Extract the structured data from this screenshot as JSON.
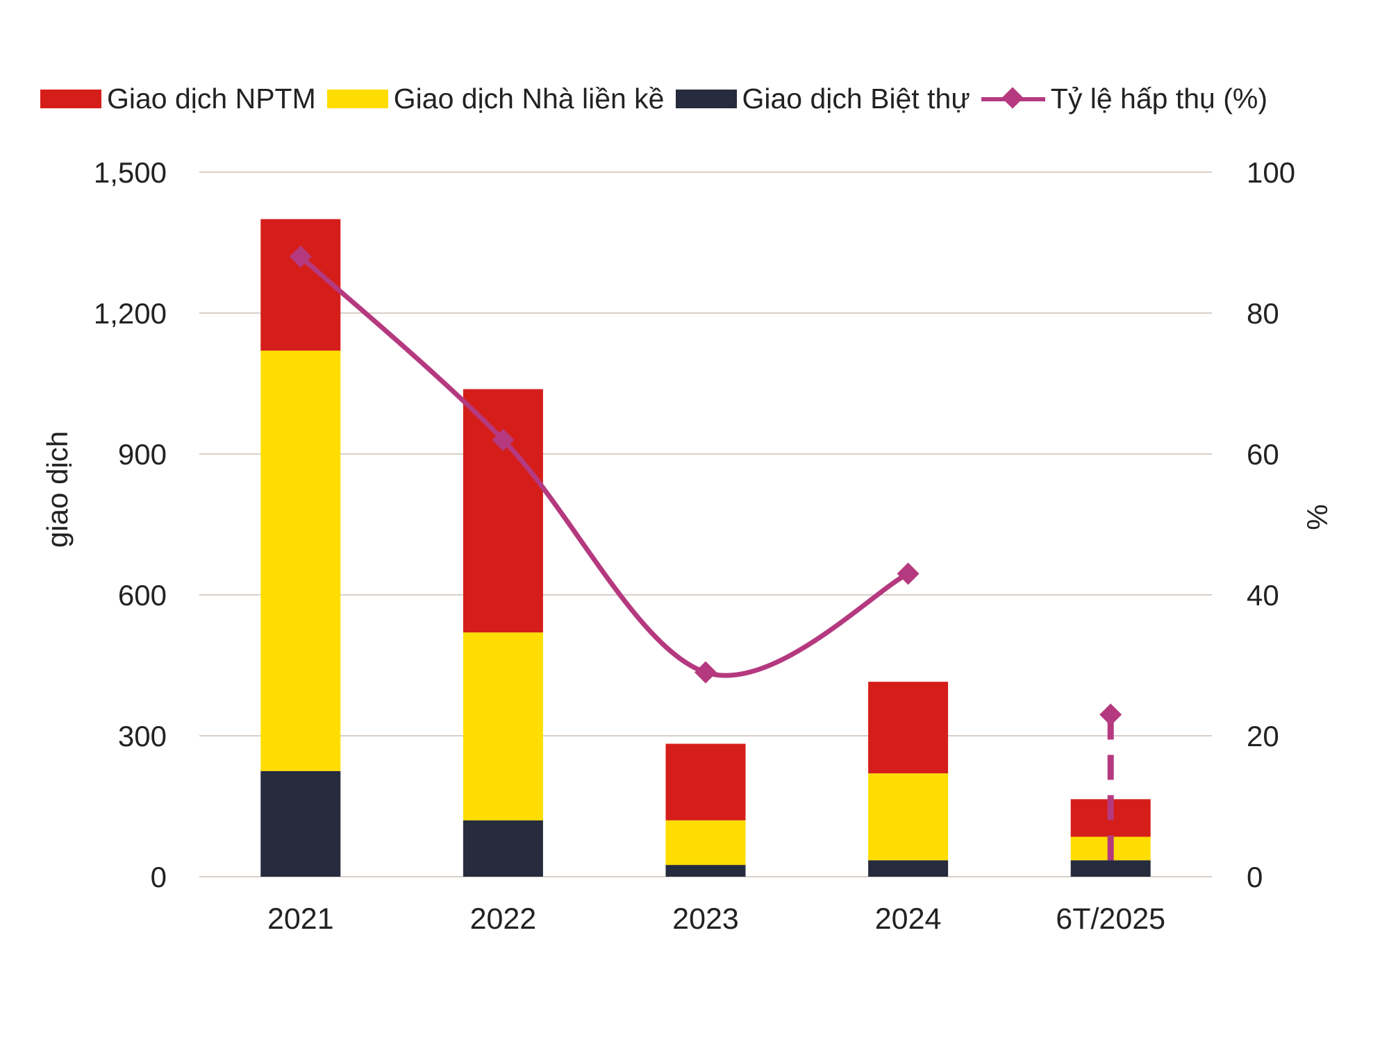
{
  "chart_data": {
    "type": "bar",
    "stacked": true,
    "categories": [
      "2021",
      "2022",
      "2023",
      "2024",
      "6T/2025"
    ],
    "series": [
      {
        "name": "Giao dịch Biệt thự",
        "type": "bar",
        "axis": "left",
        "color": "#262b3d",
        "values": [
          225,
          120,
          25,
          35,
          35
        ]
      },
      {
        "name": "Giao dịch Nhà liền kề",
        "type": "bar",
        "axis": "left",
        "color": "#ffdd00",
        "values": [
          895,
          400,
          95,
          185,
          50
        ]
      },
      {
        "name": "Giao dịch NPTM",
        "type": "bar",
        "axis": "left",
        "color": "#d51e1a",
        "values": [
          280,
          518,
          163,
          195,
          80
        ]
      },
      {
        "name": "Tỷ lệ hấp thụ (%)",
        "type": "line",
        "axis": "right",
        "color": "#b5397f",
        "values": [
          88,
          62,
          29,
          43,
          23
        ],
        "last_segment_style": "dashed-vertical"
      }
    ],
    "legend_order": [
      "Giao dịch NPTM",
      "Giao dịch Nhà liền kề",
      "Giao dịch Biệt thự",
      "Tỷ lệ hấp thụ (%)"
    ],
    "left_axis": {
      "label": "giao dịch",
      "min": 0,
      "max": 1500,
      "ticks": [
        "0",
        "300",
        "600",
        "900",
        "1,200",
        "1,500"
      ]
    },
    "right_axis": {
      "label": "%",
      "min": 0,
      "max": 100,
      "ticks": [
        "0",
        "20",
        "40",
        "60",
        "80",
        "100"
      ]
    },
    "grid": true,
    "legend_position": "top"
  }
}
